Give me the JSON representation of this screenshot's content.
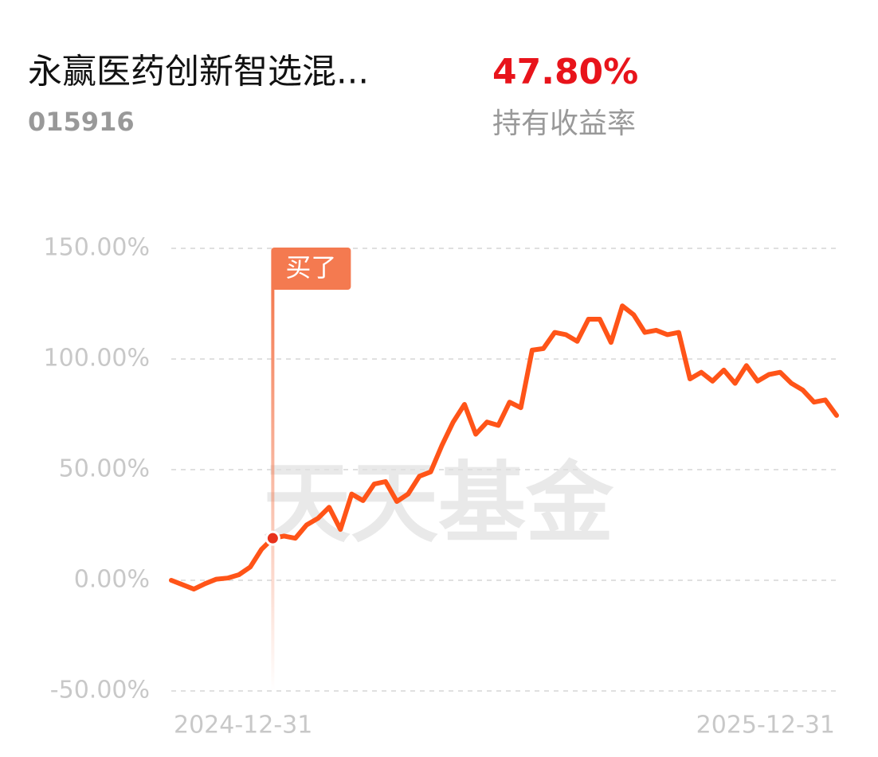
{
  "header": {
    "title": "永赢医药创新智选混...",
    "code": "015916",
    "return_value": "47.80%",
    "return_label": "持有收益率"
  },
  "chart_data": {
    "type": "line",
    "categories": [
      "2024-12-31",
      null,
      null,
      null,
      null,
      null,
      null,
      null,
      null,
      null,
      null,
      null,
      null,
      null,
      null,
      null,
      null,
      null,
      null,
      null,
      null,
      null,
      null,
      null,
      null,
      null,
      null,
      null,
      null,
      null,
      null,
      null,
      null,
      null,
      null,
      null,
      null,
      null,
      null,
      null,
      null,
      null,
      null,
      null,
      null,
      null,
      null,
      null,
      null,
      null,
      null,
      null,
      null,
      null,
      null,
      null,
      null,
      null,
      null,
      "2025-12-31"
    ],
    "values": [
      0,
      -2,
      -4,
      -1.5,
      0.5,
      1,
      2.5,
      6,
      14,
      19,
      20,
      19,
      25,
      28,
      33,
      23,
      39,
      36,
      43.5,
      44.6,
      35.6,
      39,
      47,
      49,
      61,
      71.5,
      79.5,
      66,
      71.5,
      70,
      80.5,
      78,
      104,
      104.7,
      112,
      111,
      108,
      118,
      118,
      107.5,
      124,
      120,
      112,
      113,
      111,
      112,
      91,
      94,
      90,
      95,
      89,
      97,
      90,
      93,
      94,
      89,
      86,
      80.5,
      81.5,
      74.5
    ],
    "color": "#ff5418",
    "ylim": [
      -50,
      150
    ],
    "yticks": [
      {
        "value": -50,
        "label": "-50.00%"
      },
      {
        "value": 0,
        "label": "0.00%"
      },
      {
        "value": 50,
        "label": "50.00%"
      },
      {
        "value": 100,
        "label": "100.00%"
      },
      {
        "value": 150,
        "label": "150.00%"
      }
    ],
    "grid": true,
    "annotations": [
      {
        "text": "买了",
        "index": 9
      }
    ],
    "watermark": "天天基金"
  }
}
